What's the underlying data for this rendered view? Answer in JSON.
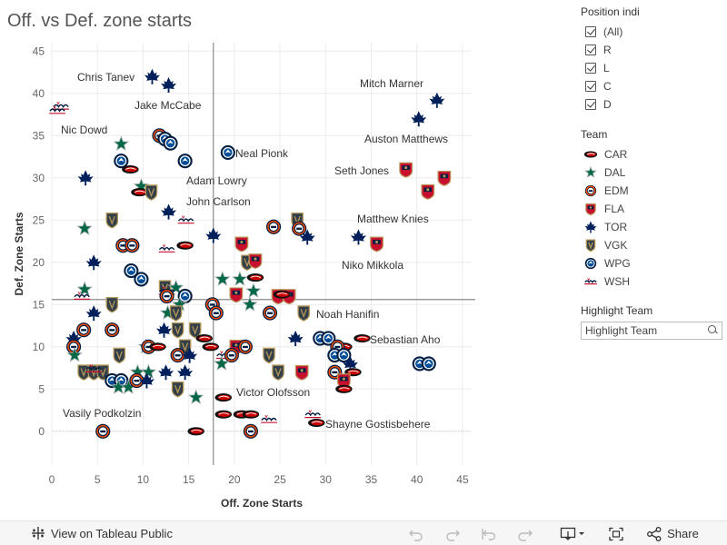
{
  "title": "Off. vs Def. zone starts",
  "filters": {
    "position_heading": "Position indi",
    "options": [
      "(All)",
      "R",
      "L",
      "C",
      "D"
    ],
    "team_heading": "Team",
    "teams": [
      {
        "code": "CAR",
        "icon": "car-logo-icon"
      },
      {
        "code": "DAL",
        "icon": "dal-logo-icon"
      },
      {
        "code": "EDM",
        "icon": "edm-logo-icon"
      },
      {
        "code": "FLA",
        "icon": "fla-logo-icon"
      },
      {
        "code": "TOR",
        "icon": "tor-logo-icon"
      },
      {
        "code": "VGK",
        "icon": "vgk-logo-icon"
      },
      {
        "code": "WPG",
        "icon": "wpg-logo-icon"
      },
      {
        "code": "WSH",
        "icon": "wsh-logo-icon"
      }
    ],
    "highlight_heading": "Highlight Team",
    "highlight_placeholder": "Highlight Team"
  },
  "team_colors": {
    "CAR": "#cc0000",
    "DAL": "#006847",
    "EDM": "#041e42",
    "FLA": "#b9975b",
    "TOR": "#00205b",
    "VGK": "#333f48",
    "WPG": "#041e42",
    "WSH": "#c8102e"
  },
  "footer": {
    "view_label": "View on Tableau Public",
    "share_label": "Share",
    "icons": [
      "undo-icon",
      "redo-icon",
      "revert-icon",
      "refresh-icon",
      "download-icon",
      "fullscreen-icon",
      "share-icon"
    ]
  },
  "chart_data": {
    "type": "scatter",
    "xlabel": "Off. Zone Starts",
    "ylabel": "Def. Zone Starts",
    "xlim": [
      0,
      46
    ],
    "ylim": [
      -4,
      46
    ],
    "xticks": [
      0,
      5,
      10,
      15,
      20,
      25,
      30,
      35,
      40,
      45
    ],
    "yticks": [
      0,
      5,
      10,
      15,
      20,
      25,
      30,
      35,
      40,
      45
    ],
    "reference_lines": {
      "x": 17.7,
      "y": 15.6
    },
    "points": [
      {
        "team": "TOR",
        "x": 11,
        "y": 42,
        "label": "Chris Tanev"
      },
      {
        "team": "TOR",
        "x": 12.8,
        "y": 41
      },
      {
        "team": "WSH",
        "x": 1,
        "y": 38.5
      },
      {
        "team": "WSH",
        "x": 0.6,
        "y": 38
      },
      {
        "team": "TOR",
        "x": 42.2,
        "y": 39.2,
        "label": "Mitch Marner"
      },
      {
        "team": "TOR",
        "x": 40.2,
        "y": 37,
        "label": "Auston Matthews"
      },
      {
        "team": "EDM",
        "x": 11.8,
        "y": 35
      },
      {
        "team": "WPG",
        "x": 12.4,
        "y": 34.6
      },
      {
        "team": "WPG",
        "x": 13,
        "y": 34.1,
        "label": "Jake McCabe"
      },
      {
        "team": "DAL",
        "x": 7.6,
        "y": 34
      },
      {
        "team": "WPG",
        "x": 7.6,
        "y": 32,
        "label": "Nic Dowd"
      },
      {
        "team": "WPG",
        "x": 14.6,
        "y": 32
      },
      {
        "team": "WPG",
        "x": 19.3,
        "y": 33,
        "label": "Neal Pionk"
      },
      {
        "team": "CAR",
        "x": 8.6,
        "y": 31
      },
      {
        "team": "FLA",
        "x": 38.8,
        "y": 31,
        "label": "Seth Jones"
      },
      {
        "team": "FLA",
        "x": 43,
        "y": 30
      },
      {
        "team": "TOR",
        "x": 3.7,
        "y": 30
      },
      {
        "team": "DAL",
        "x": 9.8,
        "y": 29,
        "label": "Adam Lowry"
      },
      {
        "team": "CAR",
        "x": 9.6,
        "y": 28.3
      },
      {
        "team": "VGK",
        "x": 10.9,
        "y": 28.3
      },
      {
        "team": "FLA",
        "x": 41.2,
        "y": 28.4
      },
      {
        "team": "TOR",
        "x": 12.8,
        "y": 26,
        "label": "John Carlson"
      },
      {
        "team": "VGK",
        "x": 6.6,
        "y": 25
      },
      {
        "team": "WSH",
        "x": 14.7,
        "y": 25
      },
      {
        "team": "VGK",
        "x": 26.9,
        "y": 25
      },
      {
        "team": "DAL",
        "x": 3.6,
        "y": 24
      },
      {
        "team": "EDM",
        "x": 24.3,
        "y": 24.2
      },
      {
        "team": "EDM",
        "x": 27.1,
        "y": 24
      },
      {
        "team": "TOR",
        "x": 17.7,
        "y": 23.2
      },
      {
        "team": "TOR",
        "x": 28,
        "y": 23
      },
      {
        "team": "TOR",
        "x": 33.6,
        "y": 23,
        "label": "Matthew Knies"
      },
      {
        "team": "FLA",
        "x": 35.6,
        "y": 22.2
      },
      {
        "team": "EDM",
        "x": 7.8,
        "y": 22
      },
      {
        "team": "EDM",
        "x": 8.8,
        "y": 22
      },
      {
        "team": "CAR",
        "x": 14.6,
        "y": 22
      },
      {
        "team": "FLA",
        "x": 20.8,
        "y": 22.2
      },
      {
        "team": "WSH",
        "x": 12.6,
        "y": 21.6
      },
      {
        "team": "TOR",
        "x": 4.6,
        "y": 20
      },
      {
        "team": "VGK",
        "x": 21.4,
        "y": 20,
        "label": "Niko Mikkola"
      },
      {
        "team": "FLA",
        "x": 22.3,
        "y": 20.2
      },
      {
        "team": "WPG",
        "x": 8.7,
        "y": 19
      },
      {
        "team": "WPG",
        "x": 9.8,
        "y": 18
      },
      {
        "team": "DAL",
        "x": 18.7,
        "y": 18
      },
      {
        "team": "DAL",
        "x": 20.6,
        "y": 18
      },
      {
        "team": "CAR",
        "x": 22.3,
        "y": 18.2
      },
      {
        "team": "VGK",
        "x": 12.4,
        "y": 17
      },
      {
        "team": "DAL",
        "x": 13.6,
        "y": 17
      },
      {
        "team": "WSH",
        "x": 12.6,
        "y": 16.6
      },
      {
        "team": "DAL",
        "x": 3.6,
        "y": 16.8
      },
      {
        "team": "WSH",
        "x": 3.3,
        "y": 16
      },
      {
        "team": "EDM",
        "x": 12.6,
        "y": 16
      },
      {
        "team": "WPG",
        "x": 14.6,
        "y": 16
      },
      {
        "team": "FLA",
        "x": 20.2,
        "y": 16.2
      },
      {
        "team": "DAL",
        "x": 22.1,
        "y": 16.6
      },
      {
        "team": "FLA",
        "x": 24.8,
        "y": 16
      },
      {
        "team": "FLA",
        "x": 26,
        "y": 16
      },
      {
        "team": "CAR",
        "x": 25.2,
        "y": 16.2
      },
      {
        "team": "VGK",
        "x": 6.6,
        "y": 15
      },
      {
        "team": "DAL",
        "x": 14,
        "y": 15
      },
      {
        "team": "EDM",
        "x": 17.6,
        "y": 15
      },
      {
        "team": "DAL",
        "x": 21.7,
        "y": 15
      },
      {
        "team": "TOR",
        "x": 4.6,
        "y": 14
      },
      {
        "team": "DAL",
        "x": 12.7,
        "y": 14
      },
      {
        "team": "VGK",
        "x": 13.6,
        "y": 14
      },
      {
        "team": "EDM",
        "x": 18,
        "y": 14
      },
      {
        "team": "EDM",
        "x": 23.9,
        "y": 14
      },
      {
        "team": "VGK",
        "x": 27.6,
        "y": 14,
        "label": "Noah Hanifin"
      },
      {
        "team": "EDM",
        "x": 3.5,
        "y": 12
      },
      {
        "team": "EDM",
        "x": 6.6,
        "y": 12
      },
      {
        "team": "TOR",
        "x": 12.3,
        "y": 12
      },
      {
        "team": "VGK",
        "x": 13.8,
        "y": 12
      },
      {
        "team": "VGK",
        "x": 15.7,
        "y": 12
      },
      {
        "team": "CAR",
        "x": 16.7,
        "y": 11
      },
      {
        "team": "TOR",
        "x": 2.4,
        "y": 11
      },
      {
        "team": "TOR",
        "x": 26.7,
        "y": 11
      },
      {
        "team": "WPG",
        "x": 29.4,
        "y": 11
      },
      {
        "team": "WPG",
        "x": 30.3,
        "y": 11
      },
      {
        "team": "CAR",
        "x": 34,
        "y": 11,
        "label": "Sebastian Aho"
      },
      {
        "team": "EDM",
        "x": 2.4,
        "y": 10
      },
      {
        "team": "DAL",
        "x": 10.3,
        "y": 10
      },
      {
        "team": "EDM",
        "x": 10.6,
        "y": 10
      },
      {
        "team": "CAR",
        "x": 11.6,
        "y": 10
      },
      {
        "team": "VGK",
        "x": 14.6,
        "y": 10
      },
      {
        "team": "CAR",
        "x": 17.4,
        "y": 10
      },
      {
        "team": "FLA",
        "x": 20.2,
        "y": 10
      },
      {
        "team": "EDM",
        "x": 21.2,
        "y": 10
      },
      {
        "team": "CAR",
        "x": 32,
        "y": 10
      },
      {
        "team": "EDM",
        "x": 31.3,
        "y": 10
      },
      {
        "team": "DAL",
        "x": 2.5,
        "y": 9
      },
      {
        "team": "VGK",
        "x": 7.4,
        "y": 9
      },
      {
        "team": "EDM",
        "x": 13.8,
        "y": 9
      },
      {
        "team": "TOR",
        "x": 15.1,
        "y": 9
      },
      {
        "team": "WSH",
        "x": 18.9,
        "y": 9
      },
      {
        "team": "EDM",
        "x": 19.7,
        "y": 9
      },
      {
        "team": "VGK",
        "x": 23.8,
        "y": 9
      },
      {
        "team": "WPG",
        "x": 31,
        "y": 9
      },
      {
        "team": "WPG",
        "x": 32,
        "y": 9
      },
      {
        "team": "WPG",
        "x": 40.3,
        "y": 8,
        "label": "Victor Olofsson"
      },
      {
        "team": "WPG",
        "x": 41.3,
        "y": 8
      },
      {
        "team": "DAL",
        "x": 18.6,
        "y": 8
      },
      {
        "team": "TOR",
        "x": 32.7,
        "y": 8
      },
      {
        "team": "VGK",
        "x": 3.5,
        "y": 7
      },
      {
        "team": "VGK",
        "x": 4.6,
        "y": 7
      },
      {
        "team": "VGK",
        "x": 5.6,
        "y": 7
      },
      {
        "team": "WSH",
        "x": 4.6,
        "y": 7.4
      },
      {
        "team": "DAL",
        "x": 9.4,
        "y": 7
      },
      {
        "team": "DAL",
        "x": 10.6,
        "y": 7
      },
      {
        "team": "TOR",
        "x": 12.5,
        "y": 7
      },
      {
        "team": "TOR",
        "x": 14.6,
        "y": 7
      },
      {
        "team": "VGK",
        "x": 24.8,
        "y": 7
      },
      {
        "team": "FLA",
        "x": 27.4,
        "y": 7
      },
      {
        "team": "EDM",
        "x": 31,
        "y": 7
      },
      {
        "team": "CAR",
        "x": 33,
        "y": 7
      },
      {
        "team": "WPG",
        "x": 6.6,
        "y": 6
      },
      {
        "team": "WPG",
        "x": 7.6,
        "y": 6
      },
      {
        "team": "DAL",
        "x": 7.3,
        "y": 5.2
      },
      {
        "team": "DAL",
        "x": 8.4,
        "y": 5.2
      },
      {
        "team": "EDM",
        "x": 9.3,
        "y": 6
      },
      {
        "team": "TOR",
        "x": 10.4,
        "y": 6
      },
      {
        "team": "FLA",
        "x": 32,
        "y": 6
      },
      {
        "team": "CAR",
        "x": 32,
        "y": 5
      },
      {
        "team": "VGK",
        "x": 13.8,
        "y": 5
      },
      {
        "team": "DAL",
        "x": 15.8,
        "y": 4
      },
      {
        "team": "CAR",
        "x": 18.8,
        "y": 4
      },
      {
        "team": "CAR",
        "x": 18.8,
        "y": 2,
        "label": "Shayne Gostisbehere"
      },
      {
        "team": "CAR",
        "x": 20.8,
        "y": 2
      },
      {
        "team": "CAR",
        "x": 21.8,
        "y": 2
      },
      {
        "team": "WSH",
        "x": 23.8,
        "y": 1.4
      },
      {
        "team": "WSH",
        "x": 28.6,
        "y": 2
      },
      {
        "team": "CAR",
        "x": 29,
        "y": 1
      },
      {
        "team": "EDM",
        "x": 5.6,
        "y": 0,
        "label": "Vasily Podkolzin"
      },
      {
        "team": "CAR",
        "x": 15.8,
        "y": 0
      },
      {
        "team": "EDM",
        "x": 21.8,
        "y": 0
      }
    ]
  }
}
